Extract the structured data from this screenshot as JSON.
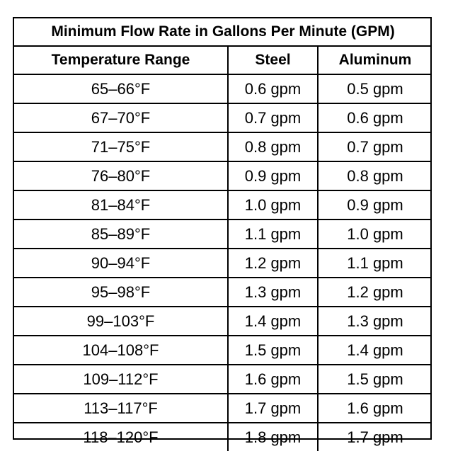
{
  "table": {
    "title": "Minimum Flow Rate in Gallons Per Minute (GPM)",
    "headers": [
      "Temperature Range",
      "Steel",
      "Aluminum"
    ],
    "rows": [
      [
        "65–66°F",
        "0.6 gpm",
        "0.5 gpm"
      ],
      [
        "67–70°F",
        "0.7 gpm",
        "0.6 gpm"
      ],
      [
        "71–75°F",
        "0.8 gpm",
        "0.7 gpm"
      ],
      [
        "76–80°F",
        "0.9 gpm",
        "0.8 gpm"
      ],
      [
        "81–84°F",
        "1.0 gpm",
        "0.9 gpm"
      ],
      [
        "85–89°F",
        "1.1 gpm",
        "1.0 gpm"
      ],
      [
        "90–94°F",
        "1.2 gpm",
        "1.1 gpm"
      ],
      [
        "95–98°F",
        "1.3 gpm",
        "1.2 gpm"
      ],
      [
        "99–103°F",
        "1.4 gpm",
        "1.3 gpm"
      ],
      [
        "104–108°F",
        "1.5 gpm",
        "1.4 gpm"
      ],
      [
        "109–112°F",
        "1.6 gpm",
        "1.5 gpm"
      ],
      [
        "113–117°F",
        "1.7 gpm",
        "1.6 gpm"
      ],
      [
        "118–120°F",
        "1.8 gpm",
        "1.7 gpm"
      ]
    ]
  }
}
